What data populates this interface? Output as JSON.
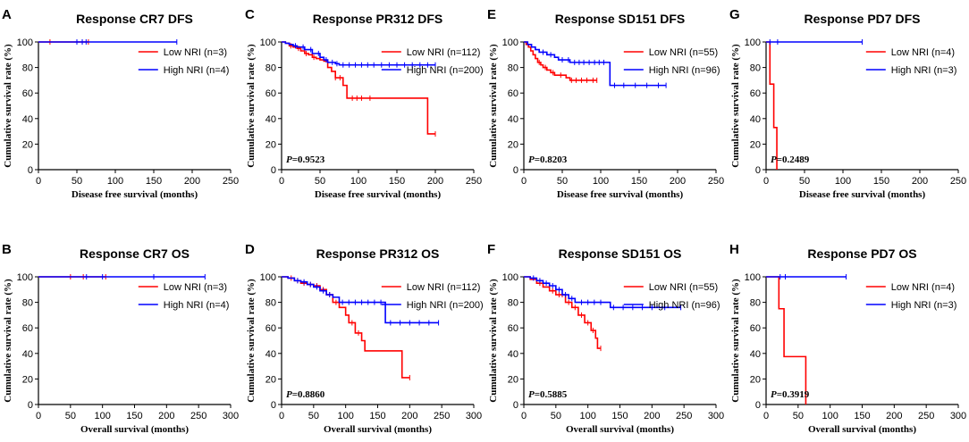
{
  "colors": {
    "low": "#ff0000",
    "high": "#0000ff",
    "axis": "#000000"
  },
  "chart_data": [
    {
      "letter": "A",
      "title": "Response CR7 DFS",
      "type": "line",
      "xlabel": "Disease free survival (months)",
      "ylabel": "Cumulative survival rate (%)",
      "xlim": [
        0,
        250
      ],
      "ylim": [
        0,
        100
      ],
      "xticks": [
        0,
        50,
        100,
        150,
        200,
        250
      ],
      "yticks": [
        0,
        20,
        40,
        60,
        80,
        100
      ],
      "pvalue_label": "P",
      "pvalue_text": "",
      "series": [
        {
          "name": "Low NRI (n=3)",
          "group": "low",
          "steps": [
            [
              0,
              100
            ],
            [
              65,
              100
            ]
          ],
          "censors": [
            15,
            50,
            57,
            65
          ]
        },
        {
          "name": "High NRI (n=4)",
          "group": "high",
          "steps": [
            [
              0,
              100
            ],
            [
              180,
              100
            ]
          ],
          "censors": [
            50,
            57,
            62,
            180
          ]
        }
      ]
    },
    {
      "letter": "C",
      "title": "Response PR312 DFS",
      "type": "line",
      "xlabel": "Disease free survival (months)",
      "ylabel": "Cumulative survival rate (%)",
      "xlim": [
        0,
        250
      ],
      "ylim": [
        0,
        100
      ],
      "xticks": [
        0,
        50,
        100,
        150,
        200,
        250
      ],
      "yticks": [
        0,
        20,
        40,
        60,
        80,
        100
      ],
      "pvalue_label": "P",
      "pvalue_text": "=0.9523",
      "series": [
        {
          "name": "Low NRI (n=112)",
          "group": "low",
          "steps": [
            [
              0,
              100
            ],
            [
              5,
              99
            ],
            [
              10,
              97
            ],
            [
              15,
              96
            ],
            [
              20,
              95
            ],
            [
              25,
              93
            ],
            [
              30,
              91
            ],
            [
              35,
              90
            ],
            [
              40,
              88
            ],
            [
              45,
              87
            ],
            [
              50,
              86
            ],
            [
              55,
              85
            ],
            [
              60,
              80
            ],
            [
              65,
              77
            ],
            [
              70,
              72
            ],
            [
              80,
              66
            ],
            [
              85,
              56
            ],
            [
              188,
              56
            ],
            [
              190,
              28
            ],
            [
              200,
              28
            ]
          ],
          "censors": [
            12,
            22,
            32,
            42,
            70,
            76,
            92,
            98,
            104,
            115,
            200
          ]
        },
        {
          "name": "High NRI (n=200)",
          "group": "high",
          "steps": [
            [
              0,
              100
            ],
            [
              5,
              99
            ],
            [
              10,
              98
            ],
            [
              15,
              97
            ],
            [
              20,
              96
            ],
            [
              30,
              94
            ],
            [
              40,
              91
            ],
            [
              50,
              88
            ],
            [
              55,
              86
            ],
            [
              60,
              84
            ],
            [
              70,
              83
            ],
            [
              75,
              82
            ],
            [
              200,
              82
            ]
          ],
          "censors": [
            18,
            28,
            38,
            48,
            58,
            66,
            72,
            80,
            88,
            96,
            104,
            112,
            120,
            130,
            140,
            150,
            160,
            170,
            180,
            190,
            200
          ]
        }
      ]
    },
    {
      "letter": "E",
      "title": "Response SD151 DFS",
      "type": "line",
      "xlabel": "Disease free survival (months)",
      "ylabel": "Cumulative survival rate (%)",
      "xlim": [
        0,
        250
      ],
      "ylim": [
        0,
        100
      ],
      "xticks": [
        0,
        50,
        100,
        150,
        200,
        250
      ],
      "yticks": [
        0,
        20,
        40,
        60,
        80,
        100
      ],
      "pvalue_label": "P",
      "pvalue_text": "=0.8203",
      "series": [
        {
          "name": "Low NRI (n=55)",
          "group": "low",
          "steps": [
            [
              0,
              100
            ],
            [
              3,
              98
            ],
            [
              6,
              96
            ],
            [
              9,
              93
            ],
            [
              12,
              90
            ],
            [
              15,
              87
            ],
            [
              18,
              84
            ],
            [
              22,
              82
            ],
            [
              25,
              80
            ],
            [
              30,
              78
            ],
            [
              35,
              76
            ],
            [
              40,
              74
            ],
            [
              55,
              72
            ],
            [
              60,
              70
            ],
            [
              95,
              70
            ]
          ],
          "censors": [
            20,
            28,
            38,
            48,
            62,
            68,
            75,
            82,
            90,
            95
          ]
        },
        {
          "name": "High NRI (n=96)",
          "group": "high",
          "steps": [
            [
              0,
              100
            ],
            [
              5,
              98
            ],
            [
              10,
              96
            ],
            [
              15,
              94
            ],
            [
              20,
              92
            ],
            [
              30,
              90
            ],
            [
              40,
              88
            ],
            [
              45,
              86
            ],
            [
              60,
              84
            ],
            [
              110,
              84
            ],
            [
              112,
              66
            ],
            [
              185,
              66
            ]
          ],
          "censors": [
            25,
            35,
            50,
            58,
            66,
            72,
            78,
            85,
            92,
            98,
            104,
            118,
            130,
            145,
            160,
            175,
            185
          ]
        }
      ]
    },
    {
      "letter": "G",
      "title": "Response PD7 DFS",
      "type": "line",
      "xlabel": "Disease free survival (months)",
      "ylabel": "Cumulative survival rate (%)",
      "xlim": [
        0,
        250
      ],
      "ylim": [
        0,
        100
      ],
      "xticks": [
        0,
        50,
        100,
        150,
        200,
        250
      ],
      "yticks": [
        0,
        20,
        40,
        60,
        80,
        100
      ],
      "pvalue_label": "P",
      "pvalue_text": "=0.2489",
      "series": [
        {
          "name": "Low NRI (n=4)",
          "group": "low",
          "steps": [
            [
              0,
              100
            ],
            [
              3,
              100
            ],
            [
              5,
              67
            ],
            [
              9,
              67
            ],
            [
              10,
              33
            ],
            [
              13,
              33
            ],
            [
              14,
              0
            ]
          ],
          "censors": []
        },
        {
          "name": "High NRI (n=3)",
          "group": "high",
          "steps": [
            [
              0,
              100
            ],
            [
              125,
              100
            ]
          ],
          "censors": [
            5,
            15,
            125
          ]
        }
      ]
    },
    {
      "letter": "B",
      "title": "Response CR7 OS",
      "type": "line",
      "xlabel": "Overall survival (months)",
      "ylabel": "Cumulative survival rate (%)",
      "xlim": [
        0,
        300
      ],
      "ylim": [
        0,
        100
      ],
      "xticks": [
        0,
        50,
        100,
        150,
        200,
        250,
        300
      ],
      "yticks": [
        0,
        20,
        40,
        60,
        80,
        100
      ],
      "pvalue_label": "P",
      "pvalue_text": "",
      "series": [
        {
          "name": "Low NRI (n=3)",
          "group": "low",
          "steps": [
            [
              0,
              100
            ],
            [
              105,
              100
            ]
          ],
          "censors": [
            50,
            70,
            105
          ]
        },
        {
          "name": "High NRI (n=4)",
          "group": "high",
          "steps": [
            [
              0,
              100
            ],
            [
              260,
              100
            ]
          ],
          "censors": [
            75,
            100,
            180,
            260
          ]
        }
      ]
    },
    {
      "letter": "D",
      "title": "Response PR312 OS",
      "type": "line",
      "xlabel": "Overall survival (months)",
      "ylabel": "Cumulative survival rate (%)",
      "xlim": [
        0,
        300
      ],
      "ylim": [
        0,
        100
      ],
      "xticks": [
        0,
        50,
        100,
        150,
        200,
        250,
        300
      ],
      "yticks": [
        0,
        20,
        40,
        60,
        80,
        100
      ],
      "pvalue_label": "P",
      "pvalue_text": "=0.8860",
      "series": [
        {
          "name": "Low NRI (n=112)",
          "group": "low",
          "steps": [
            [
              0,
              100
            ],
            [
              10,
              99
            ],
            [
              20,
              97
            ],
            [
              30,
              95
            ],
            [
              40,
              94
            ],
            [
              50,
              93
            ],
            [
              60,
              90
            ],
            [
              70,
              86
            ],
            [
              80,
              80
            ],
            [
              90,
              76
            ],
            [
              100,
              70
            ],
            [
              105,
              64
            ],
            [
              115,
              56
            ],
            [
              125,
              50
            ],
            [
              130,
              42
            ],
            [
              185,
              42
            ],
            [
              188,
              21
            ],
            [
              200,
              21
            ]
          ],
          "censors": [
            15,
            25,
            35,
            45,
            55,
            65,
            75,
            85,
            110,
            120,
            200
          ]
        },
        {
          "name": "High NRI (n=200)",
          "group": "high",
          "steps": [
            [
              0,
              100
            ],
            [
              10,
              99
            ],
            [
              20,
              97
            ],
            [
              30,
              96
            ],
            [
              40,
              94
            ],
            [
              50,
              92
            ],
            [
              60,
              89
            ],
            [
              70,
              86
            ],
            [
              80,
              84
            ],
            [
              90,
              80
            ],
            [
              160,
              80
            ],
            [
              162,
              64
            ],
            [
              245,
              64
            ]
          ],
          "censors": [
            25,
            35,
            45,
            55,
            65,
            75,
            95,
            105,
            115,
            125,
            135,
            145,
            155,
            170,
            185,
            200,
            215,
            230,
            245
          ]
        }
      ]
    },
    {
      "letter": "F",
      "title": "Response SD151 OS",
      "type": "line",
      "xlabel": "Overall survival (months)",
      "ylabel": "Cumulative survival rate (%)",
      "xlim": [
        0,
        300
      ],
      "ylim": [
        0,
        100
      ],
      "xticks": [
        0,
        50,
        100,
        150,
        200,
        250,
        300
      ],
      "yticks": [
        0,
        20,
        40,
        60,
        80,
        100
      ],
      "pvalue_label": "P",
      "pvalue_text": "=0.5885",
      "series": [
        {
          "name": "Low NRI (n=55)",
          "group": "low",
          "steps": [
            [
              0,
              100
            ],
            [
              10,
              98
            ],
            [
              20,
              95
            ],
            [
              30,
              92
            ],
            [
              40,
              89
            ],
            [
              50,
              86
            ],
            [
              65,
              80
            ],
            [
              75,
              76
            ],
            [
              85,
              70
            ],
            [
              95,
              64
            ],
            [
              105,
              58
            ],
            [
              112,
              52
            ],
            [
              115,
              44
            ],
            [
              120,
              44
            ]
          ],
          "censors": [
            25,
            45,
            55,
            60,
            70,
            80,
            90,
            100,
            108,
            120
          ]
        },
        {
          "name": "High NRI (n=96)",
          "group": "high",
          "steps": [
            [
              0,
              100
            ],
            [
              10,
              99
            ],
            [
              20,
              97
            ],
            [
              30,
              95
            ],
            [
              40,
              93
            ],
            [
              50,
              90
            ],
            [
              60,
              86
            ],
            [
              70,
              83
            ],
            [
              80,
              80
            ],
            [
              130,
              80
            ],
            [
              135,
              76
            ],
            [
              245,
              76
            ]
          ],
          "censors": [
            15,
            25,
            35,
            45,
            55,
            65,
            75,
            90,
            100,
            110,
            120,
            140,
            155,
            170,
            185,
            200,
            220,
            245
          ]
        }
      ]
    },
    {
      "letter": "H",
      "title": "Response PD7 OS",
      "type": "line",
      "xlabel": "Overall survival (months)",
      "ylabel": "Cumulative survival rate (%)",
      "xlim": [
        0,
        300
      ],
      "ylim": [
        0,
        100
      ],
      "xticks": [
        0,
        50,
        100,
        150,
        200,
        250,
        300
      ],
      "yticks": [
        0,
        20,
        40,
        60,
        80,
        100
      ],
      "pvalue_label": "P",
      "pvalue_text": "=0.3919",
      "series": [
        {
          "name": "Low NRI (n=4)",
          "group": "low",
          "steps": [
            [
              0,
              100
            ],
            [
              18,
              100
            ],
            [
              20,
              75
            ],
            [
              26,
              75
            ],
            [
              28,
              37.5
            ],
            [
              60,
              37.5
            ],
            [
              62,
              0
            ]
          ],
          "censors": []
        },
        {
          "name": "High NRI (n=3)",
          "group": "high",
          "steps": [
            [
              0,
              100
            ],
            [
              125,
              100
            ]
          ],
          "censors": [
            22,
            30,
            125
          ]
        }
      ]
    }
  ]
}
